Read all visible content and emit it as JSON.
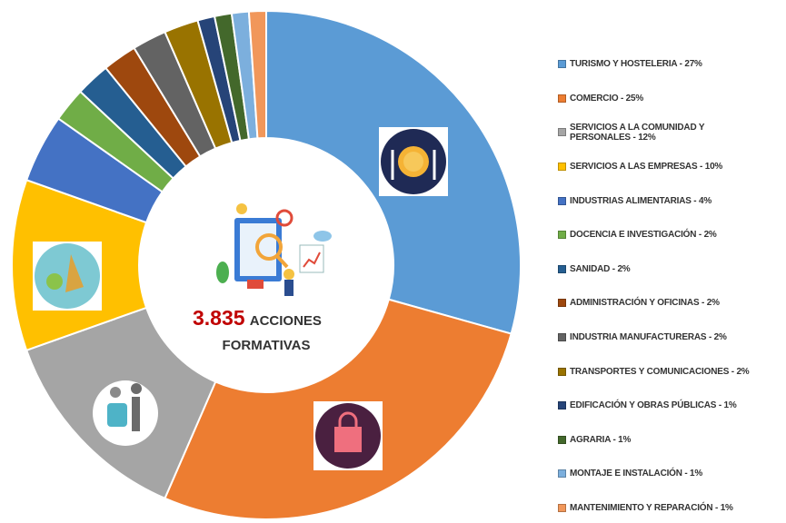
{
  "chart_data": {
    "type": "pie",
    "donut": true,
    "center_number": "3.835",
    "center_text_1": "ACCIONES",
    "center_text_2": "FORMATIVAS",
    "categories": [
      "TURISMO Y HOSTELERIA - 27%",
      "COMERCIO - 25%",
      "SERVICIOS A LA COMUNIDAD Y PERSONALES - 12%",
      "SERVICIOS A LAS EMPRESAS - 10%",
      "INDUSTRIAS ALIMENTARIAS - 4%",
      "DOCENCIA E INVESTIGACIÓN - 2%",
      "SANIDAD - 2%",
      "ADMINISTRACIÓN Y OFICINAS - 2%",
      "INDUSTRIA MANUFACTURERAS - 2%",
      "TRANSPORTES Y COMUNICACIONES - 2%",
      "EDIFICACIÓN Y OBRAS PÚBLICAS - 1%",
      "AGRARIA - 1%",
      "MONTAJE E INSTALACIÓN - 1%",
      "MANTENIMIENTO Y REPARACIÓN - 1%"
    ],
    "values": [
      27,
      25,
      12,
      10,
      4,
      2,
      2,
      2,
      2,
      2,
      1,
      1,
      1,
      1
    ],
    "colors": [
      "#5B9BD5",
      "#ED7D31",
      "#A5A5A5",
      "#FFC000",
      "#4472C4",
      "#70AD47",
      "#255E91",
      "#9E480E",
      "#636363",
      "#997300",
      "#264478",
      "#43682B",
      "#7CAFDD",
      "#F1975A"
    ],
    "legend": "right"
  }
}
